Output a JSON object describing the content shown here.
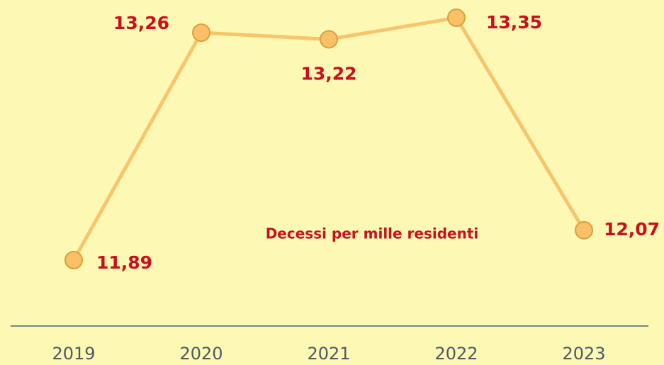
{
  "chart_data": {
    "type": "line",
    "annotation": "Decessi per mille residenti",
    "categories": [
      "2019",
      "2020",
      "2021",
      "2022",
      "2023"
    ],
    "series": [
      {
        "color": "#f8c46c",
        "values": [
          11.89,
          13.26,
          13.22,
          13.35,
          12.07
        ],
        "value_labels": [
          "11,89",
          "13,26",
          "13,22",
          "13,35",
          "12,07"
        ]
      }
    ]
  }
}
